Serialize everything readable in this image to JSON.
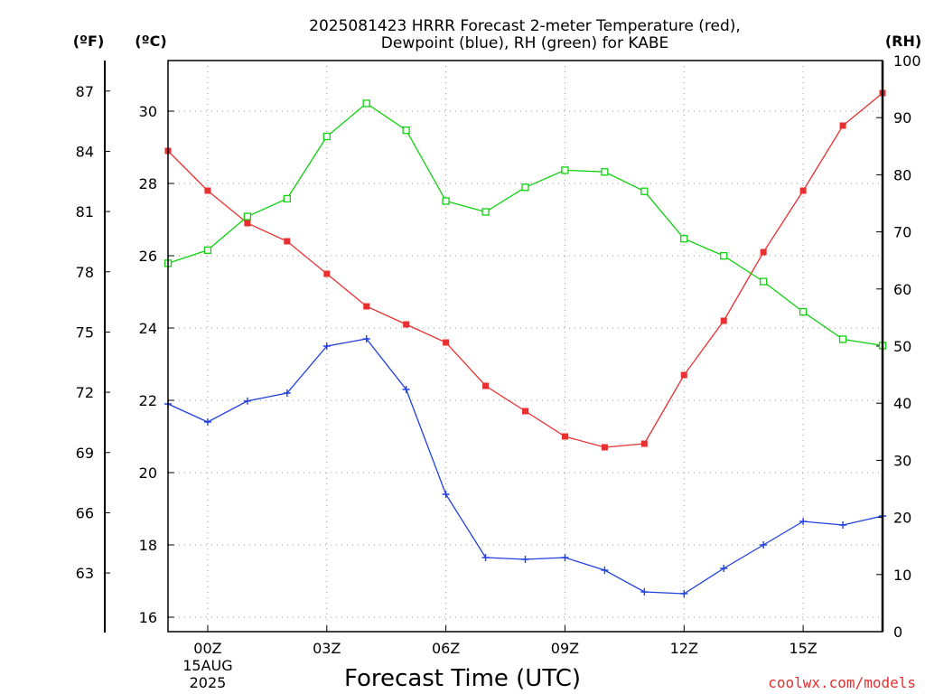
{
  "chart_data": {
    "type": "line",
    "title_line1": "2025081423 HRRR Forecast 2-meter Temperature (red),",
    "title_line2": "Dewpoint (blue), RH (green) for KABE",
    "xlabel": "Forecast Time (UTC)",
    "credit": "coolwx.com/models",
    "units": {
      "fahrenheit": "(ºF)",
      "celsius": "(ºC)",
      "rh": "(RH)"
    },
    "x_hours": [
      -1,
      0,
      1,
      2,
      3,
      4,
      5,
      6,
      7,
      8,
      9,
      10,
      11,
      12,
      13,
      14,
      15,
      16,
      17
    ],
    "xlim": [
      -1,
      17
    ],
    "x_ticks": [
      {
        "hour": 0,
        "label": "00Z",
        "sub1": "15AUG",
        "sub2": "2025"
      },
      {
        "hour": 3,
        "label": "03Z"
      },
      {
        "hour": 6,
        "label": "06Z"
      },
      {
        "hour": 9,
        "label": "09Z"
      },
      {
        "hour": 12,
        "label": "12Z"
      },
      {
        "hour": 15,
        "label": "15Z"
      }
    ],
    "y_celsius": {
      "lim": [
        15.6,
        31.4
      ],
      "ticks": [
        "16",
        "18",
        "20",
        "22",
        "24",
        "26",
        "28",
        "30"
      ]
    },
    "y_fahrenheit": {
      "ticks": [
        "63",
        "66",
        "69",
        "72",
        "75",
        "78",
        "81",
        "84",
        "87"
      ]
    },
    "y_rh": {
      "lim": [
        0,
        100
      ],
      "ticks": [
        "0",
        "10",
        "20",
        "30",
        "40",
        "50",
        "60",
        "70",
        "80",
        "90",
        "100"
      ]
    },
    "series": [
      {
        "name": "Temperature",
        "axis": "celsius",
        "color": "#e83030",
        "marker": "filled-square",
        "values": [
          28.9,
          27.8,
          26.9,
          26.4,
          25.5,
          24.6,
          24.1,
          23.6,
          22.4,
          21.7,
          21.0,
          20.7,
          20.8,
          22.7,
          24.2,
          26.1,
          27.8,
          29.6,
          30.5
        ]
      },
      {
        "name": "Dewpoint",
        "axis": "celsius",
        "color": "#2040e0",
        "marker": "plus",
        "values": [
          21.9,
          21.4,
          21.98,
          22.2,
          23.5,
          23.7,
          22.3,
          19.4,
          17.65,
          17.6,
          17.65,
          17.3,
          16.7,
          16.65,
          17.35,
          18.0,
          18.65,
          18.55,
          18.8
        ]
      },
      {
        "name": "RH",
        "axis": "rh",
        "color": "#10d010",
        "marker": "open-square",
        "values": [
          64.5,
          66.8,
          72.7,
          75.8,
          86.7,
          92.5,
          87.8,
          75.4,
          73.5,
          77.8,
          80.8,
          80.5,
          77.1,
          68.8,
          65.8,
          61.3,
          56.0,
          51.2,
          50.1
        ]
      }
    ],
    "grid": true
  }
}
